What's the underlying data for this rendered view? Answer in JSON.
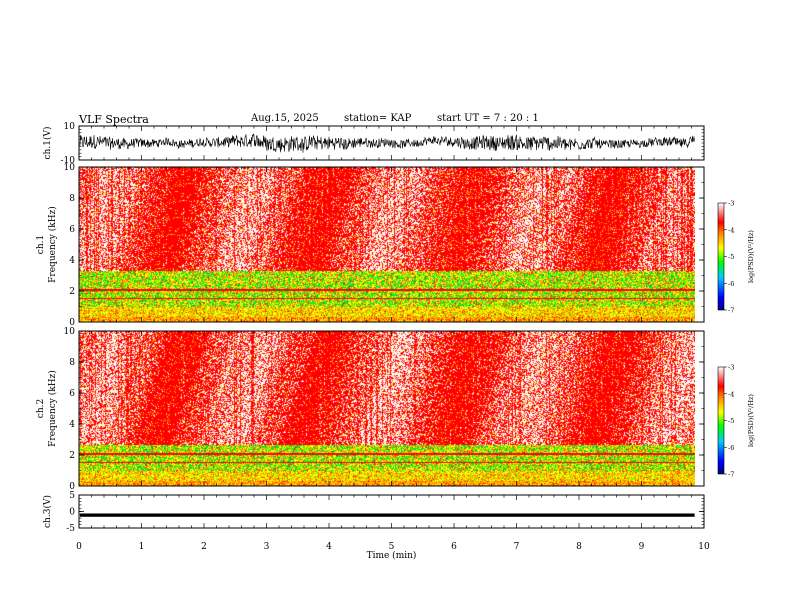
{
  "header": {
    "title": "VLF Spectra",
    "date": "Aug.15, 2025",
    "station": "station= KAP",
    "start": "start  UT  =   7 : 20 : 1"
  },
  "chart_data": {
    "type": "heatmap",
    "title": "VLF Spectra",
    "xlabel": "Time  (min)",
    "xlim": [
      0,
      10
    ],
    "xticks": [
      "0",
      "1",
      "2",
      "3",
      "4",
      "5",
      "6",
      "7",
      "8",
      "9",
      "10"
    ],
    "data_end_min": 9.85,
    "panels": [
      {
        "id": "ch1v",
        "type": "line",
        "ylabel": "ch.1(V)",
        "ylim": [
          -10,
          10
        ],
        "yticks": [
          "10",
          "-10"
        ],
        "signal": "noisy waveform, typical -5 to 4 V"
      },
      {
        "id": "ch1spec",
        "type": "heatmap",
        "ylabel": "ch.1 Frequency  (kHz)",
        "ylim": [
          0,
          10
        ],
        "yticks": [
          "0",
          "2",
          "4",
          "6",
          "8",
          "10"
        ],
        "noise_band_top_khz": 3.3
      },
      {
        "id": "ch2spec",
        "type": "heatmap",
        "ylabel": "ch.2 Frequency  (kHz)",
        "ylim": [
          0,
          10
        ],
        "yticks": [
          "0",
          "2",
          "4",
          "6",
          "8",
          "10"
        ],
        "noise_band_top_khz": 2.7
      },
      {
        "id": "ch3v",
        "type": "line",
        "ylabel": "ch.3(V)",
        "ylim": [
          -5,
          5
        ],
        "yticks": [
          "5",
          "0",
          "-5"
        ],
        "signal": "constant band near -1 V"
      }
    ],
    "colorbar": {
      "label": "log(PSD)(V²/Hz)",
      "range": [
        -7,
        -3
      ],
      "ticks": [
        "-3",
        "-4",
        "-5",
        "-6",
        "-7"
      ],
      "colors": [
        "#000080",
        "#0000ff",
        "#00c8ff",
        "#00ff00",
        "#ffff00",
        "#ff8000",
        "#ff0000",
        "#ffffff"
      ]
    }
  }
}
